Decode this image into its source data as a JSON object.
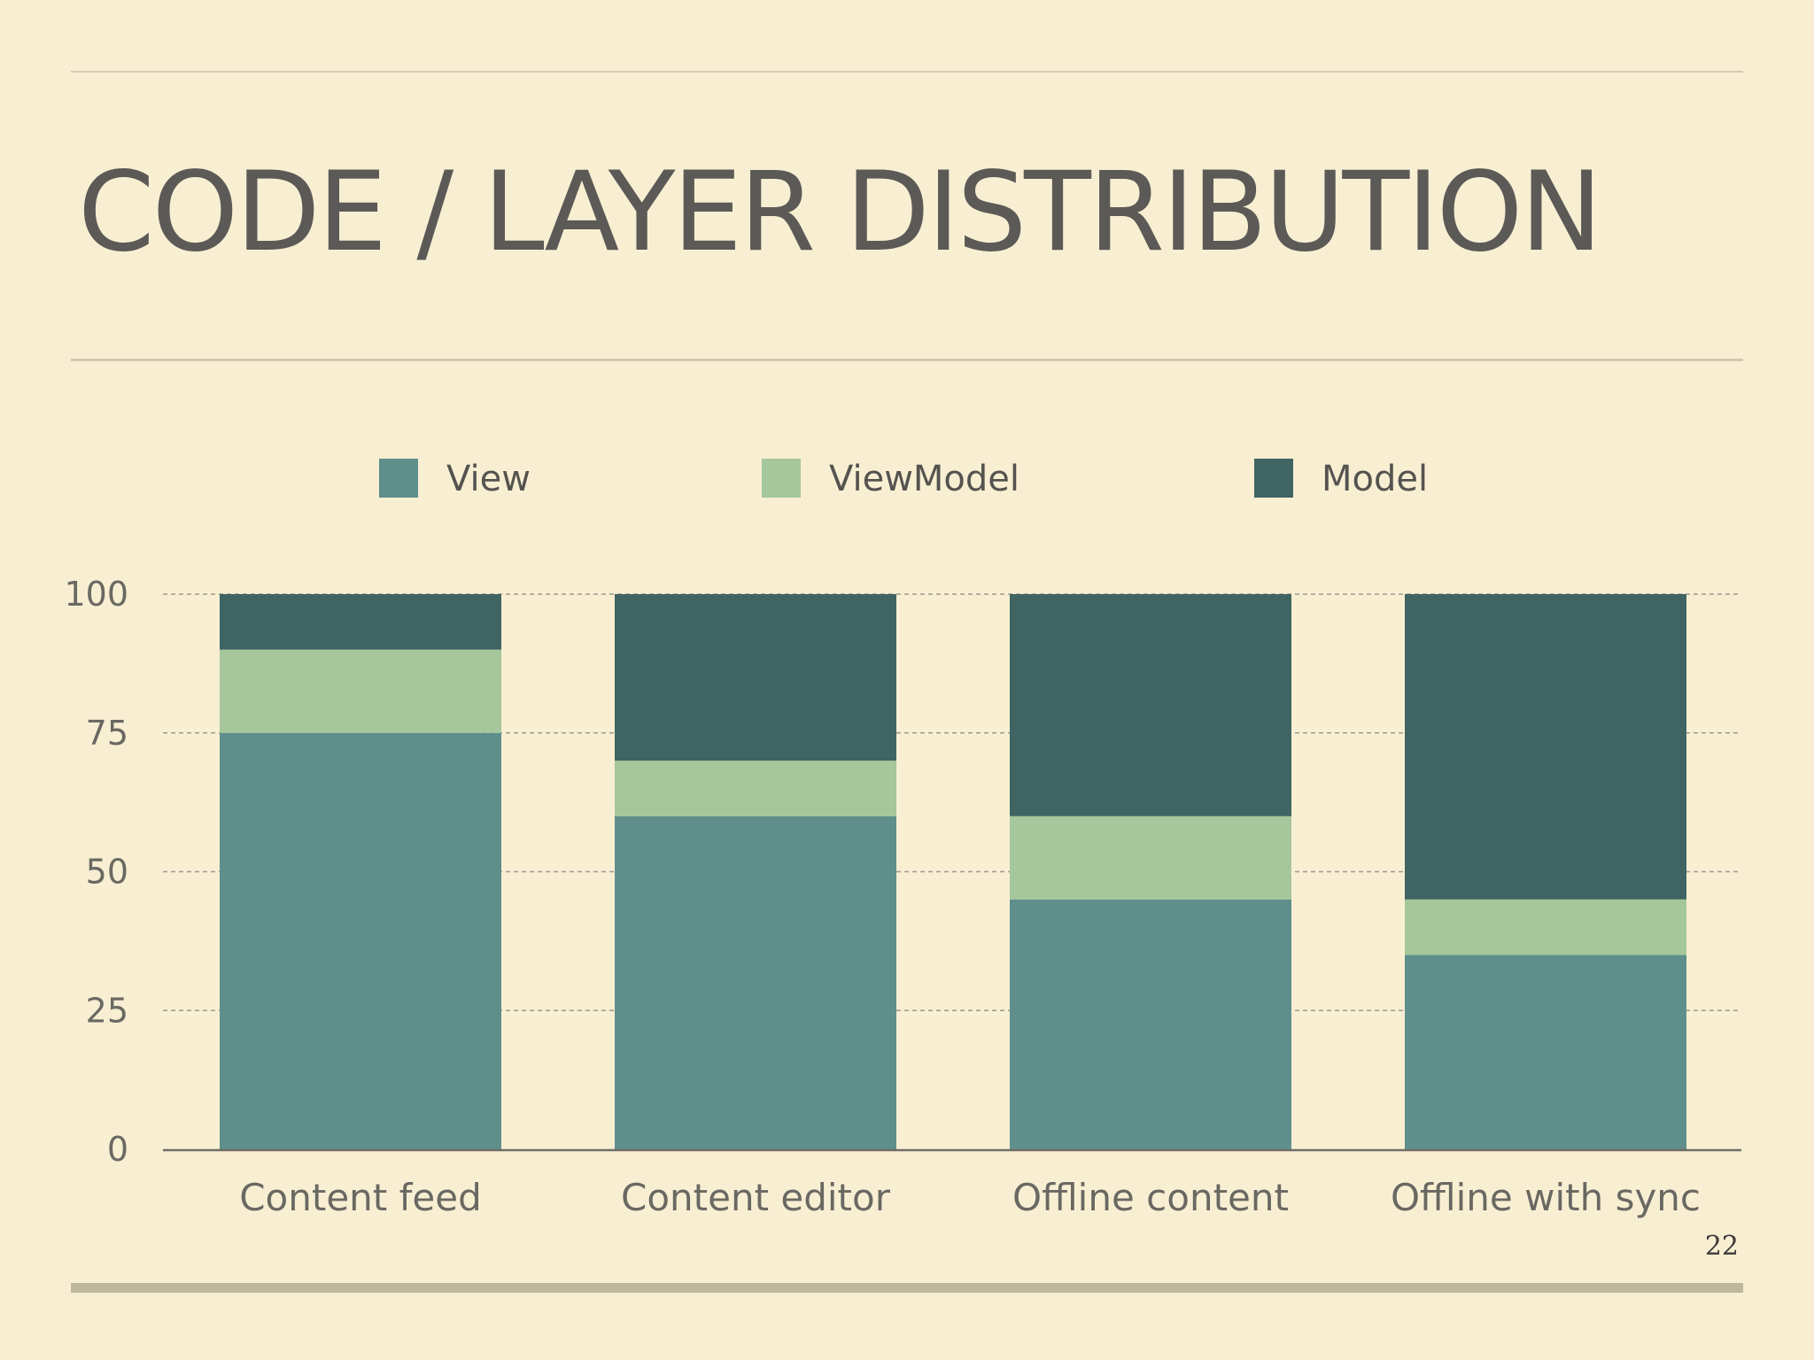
{
  "slide": {
    "title": "CODE / LAYER DISTRIBUTION",
    "page_number": "22"
  },
  "chart_data": {
    "type": "bar",
    "stacked": true,
    "categories": [
      "Content feed",
      "Content editor",
      "Offline content",
      "Offline with sync"
    ],
    "series": [
      {
        "name": "View",
        "values": [
          75,
          60,
          45,
          35
        ],
        "color": "#5f8f8b"
      },
      {
        "name": "ViewModel",
        "values": [
          15,
          10,
          15,
          10
        ],
        "color": "#a6c69b"
      },
      {
        "name": "Model",
        "values": [
          10,
          30,
          40,
          55
        ],
        "color": "#3f6462"
      }
    ],
    "ylim": [
      0,
      100
    ],
    "yticks": [
      "0",
      "25",
      "50",
      "75",
      "100"
    ],
    "grid": true,
    "legend_position": "top",
    "title": "",
    "xlabel": "",
    "ylabel": ""
  }
}
